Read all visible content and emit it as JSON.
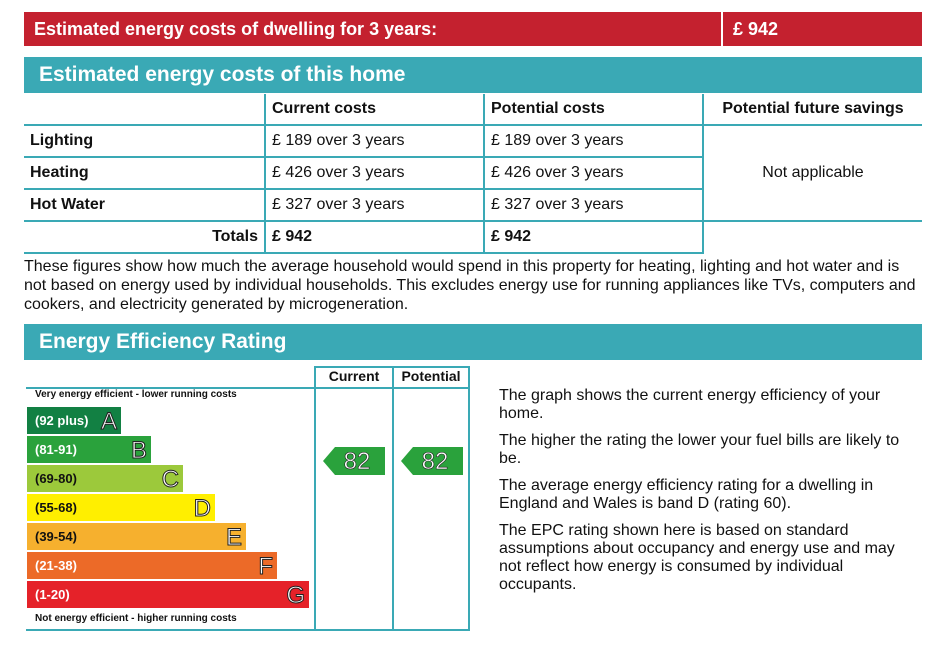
{
  "banner": {
    "label": "Estimated energy costs of dwelling for 3 years:",
    "value": "£ 942"
  },
  "costs": {
    "heading": "Estimated energy costs of this home",
    "columns": [
      "",
      "Current costs",
      "Potential costs",
      "Potential future savings"
    ],
    "rows": [
      {
        "name": "Lighting",
        "current": "£ 189 over 3 years",
        "potential": "£ 189 over 3 years"
      },
      {
        "name": "Heating",
        "current": "£ 426 over 3 years",
        "potential": "£ 426 over 3 years"
      },
      {
        "name": "Hot Water",
        "current": "£ 327 over 3 years",
        "potential": "£ 327 over 3 years"
      }
    ],
    "savings": "Not applicable",
    "totals": {
      "label": "Totals",
      "current": "£ 942",
      "potential": "£ 942"
    },
    "note": "These figures show how much the average household would spend in this property for heating, lighting and hot water and is not based on energy used by individual households. This excludes energy use for running appliances like TVs, computers and cookers, and electricity generated by microgeneration."
  },
  "efficiency": {
    "heading": "Energy Efficiency Rating",
    "col_current": "Current",
    "col_potential": "Potential",
    "top_label": "Very energy efficient - lower running costs",
    "bottom_label": "Not energy efficient - higher running costs",
    "bands": [
      {
        "range": "(92 plus)",
        "letter": "A",
        "color": "#128043"
      },
      {
        "range": "(81-91)",
        "letter": "B",
        "color": "#2aa23c"
      },
      {
        "range": "(69-80)",
        "letter": "C",
        "color": "#9cc93b"
      },
      {
        "range": "(55-68)",
        "letter": "D",
        "color": "#ffef00"
      },
      {
        "range": "(39-54)",
        "letter": "E",
        "color": "#f6b02e"
      },
      {
        "range": "(21-38)",
        "letter": "F",
        "color": "#ec6a28"
      },
      {
        "range": "(1-20)",
        "letter": "G",
        "color": "#e52229"
      }
    ],
    "current_rating": "82",
    "potential_rating": "82",
    "arrow_color": "#2aa23c",
    "text": [
      "The graph shows the current energy efficiency of your home.",
      "The higher the rating the lower your fuel bills are likely to be.",
      "The average energy efficiency rating for a dwelling in England and Wales is band D (rating 60).",
      "The EPC rating shown here is based on standard assumptions about occupancy and energy use and may not reflect how energy is consumed by individual occupants."
    ]
  }
}
